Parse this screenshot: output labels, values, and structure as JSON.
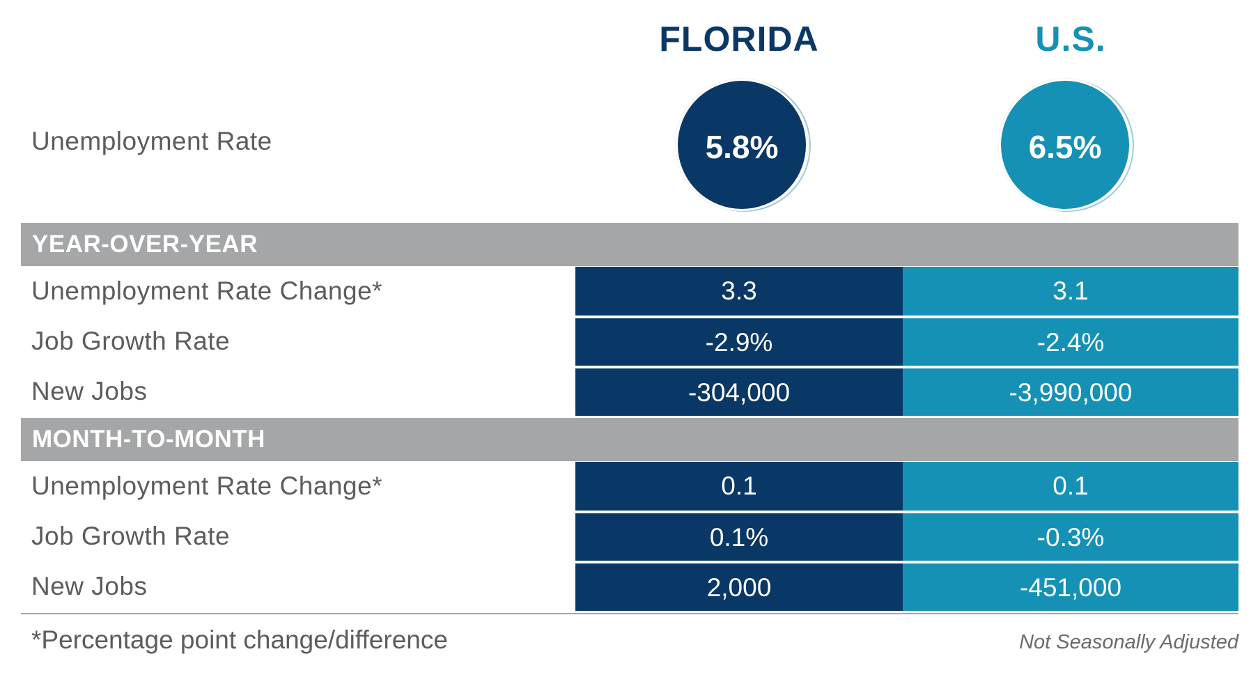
{
  "header": {
    "florida": "FLORIDA",
    "us": "U.S."
  },
  "unemployment": {
    "label": "Unemployment Rate",
    "florida": "5.8%",
    "us": "6.5%"
  },
  "sections": [
    {
      "title": "YEAR-OVER-YEAR",
      "rows": [
        {
          "label": "Unemployment Rate Change*",
          "florida": "3.3",
          "us": "3.1"
        },
        {
          "label": "Job Growth Rate",
          "florida": "-2.9%",
          "us": "-2.4%"
        },
        {
          "label": "New Jobs",
          "florida": "-304,000",
          "us": "-3,990,000"
        }
      ]
    },
    {
      "title": "MONTH-TO-MONTH",
      "rows": [
        {
          "label": "Unemployment Rate Change*",
          "florida": "0.1",
          "us": "0.1"
        },
        {
          "label": "Job Growth Rate",
          "florida": "0.1%",
          "us": "-0.3%"
        },
        {
          "label": "New Jobs",
          "florida": "2,000",
          "us": "-451,000"
        }
      ]
    }
  ],
  "footer": {
    "footnote": "*Percentage point change/difference",
    "adjustment": "Not Seasonally Adjusted"
  },
  "colors": {
    "florida": "#0a3866",
    "us": "#1591b5",
    "band": "#a5a6a8",
    "label_text": "#5c5c5c"
  }
}
